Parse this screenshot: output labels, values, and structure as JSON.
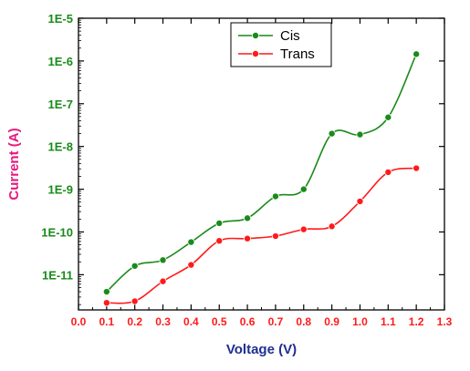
{
  "chart_data": {
    "type": "line",
    "xlabel": "Voltage (V)",
    "ylabel": "Current (A)",
    "xlim": [
      0.0,
      1.3
    ],
    "ylim": [
      1.5e-12,
      1e-05
    ],
    "y_scale": "log",
    "x_ticks": [
      "0.0",
      "0.1",
      "0.2",
      "0.3",
      "0.4",
      "0.5",
      "0.6",
      "0.7",
      "0.8",
      "0.9",
      "1.0",
      "1.1",
      "1.2",
      "1.3"
    ],
    "y_ticks": [
      "1E-11",
      "1E-10",
      "1E-9",
      "1E-8",
      "1E-7",
      "1E-6",
      "1E-5"
    ],
    "grid": false,
    "legend_position": "top-center",
    "series": [
      {
        "name": "Cis",
        "color": "#1a8a1a",
        "x": [
          0.1,
          0.2,
          0.3,
          0.4,
          0.5,
          0.6,
          0.7,
          0.8,
          0.9,
          1.0,
          1.1,
          1.2
        ],
        "y": [
          4e-12,
          1.6e-11,
          2.2e-11,
          5.8e-11,
          1.6e-10,
          2.1e-10,
          6.8e-10,
          1e-09,
          2e-08,
          1.9e-08,
          4.8e-08,
          1.45e-06
        ]
      },
      {
        "name": "Trans",
        "color": "#ff1a1a",
        "x": [
          0.1,
          0.2,
          0.3,
          0.4,
          0.5,
          0.6,
          0.7,
          0.8,
          0.9,
          1.0,
          1.1,
          1.2
        ],
        "y": [
          2.2e-12,
          2.4e-12,
          7e-12,
          1.7e-11,
          6.2e-11,
          7e-11,
          8e-11,
          1.15e-10,
          1.35e-10,
          5.2e-10,
          2.5e-09,
          3.1e-09
        ]
      }
    ],
    "colors": {
      "x_ticks": "#ff1a1a",
      "y_ticks": "#1a8a1a",
      "xlabel": "#1f2f8f",
      "ylabel": "#e6197e",
      "axis": "#000000"
    }
  }
}
